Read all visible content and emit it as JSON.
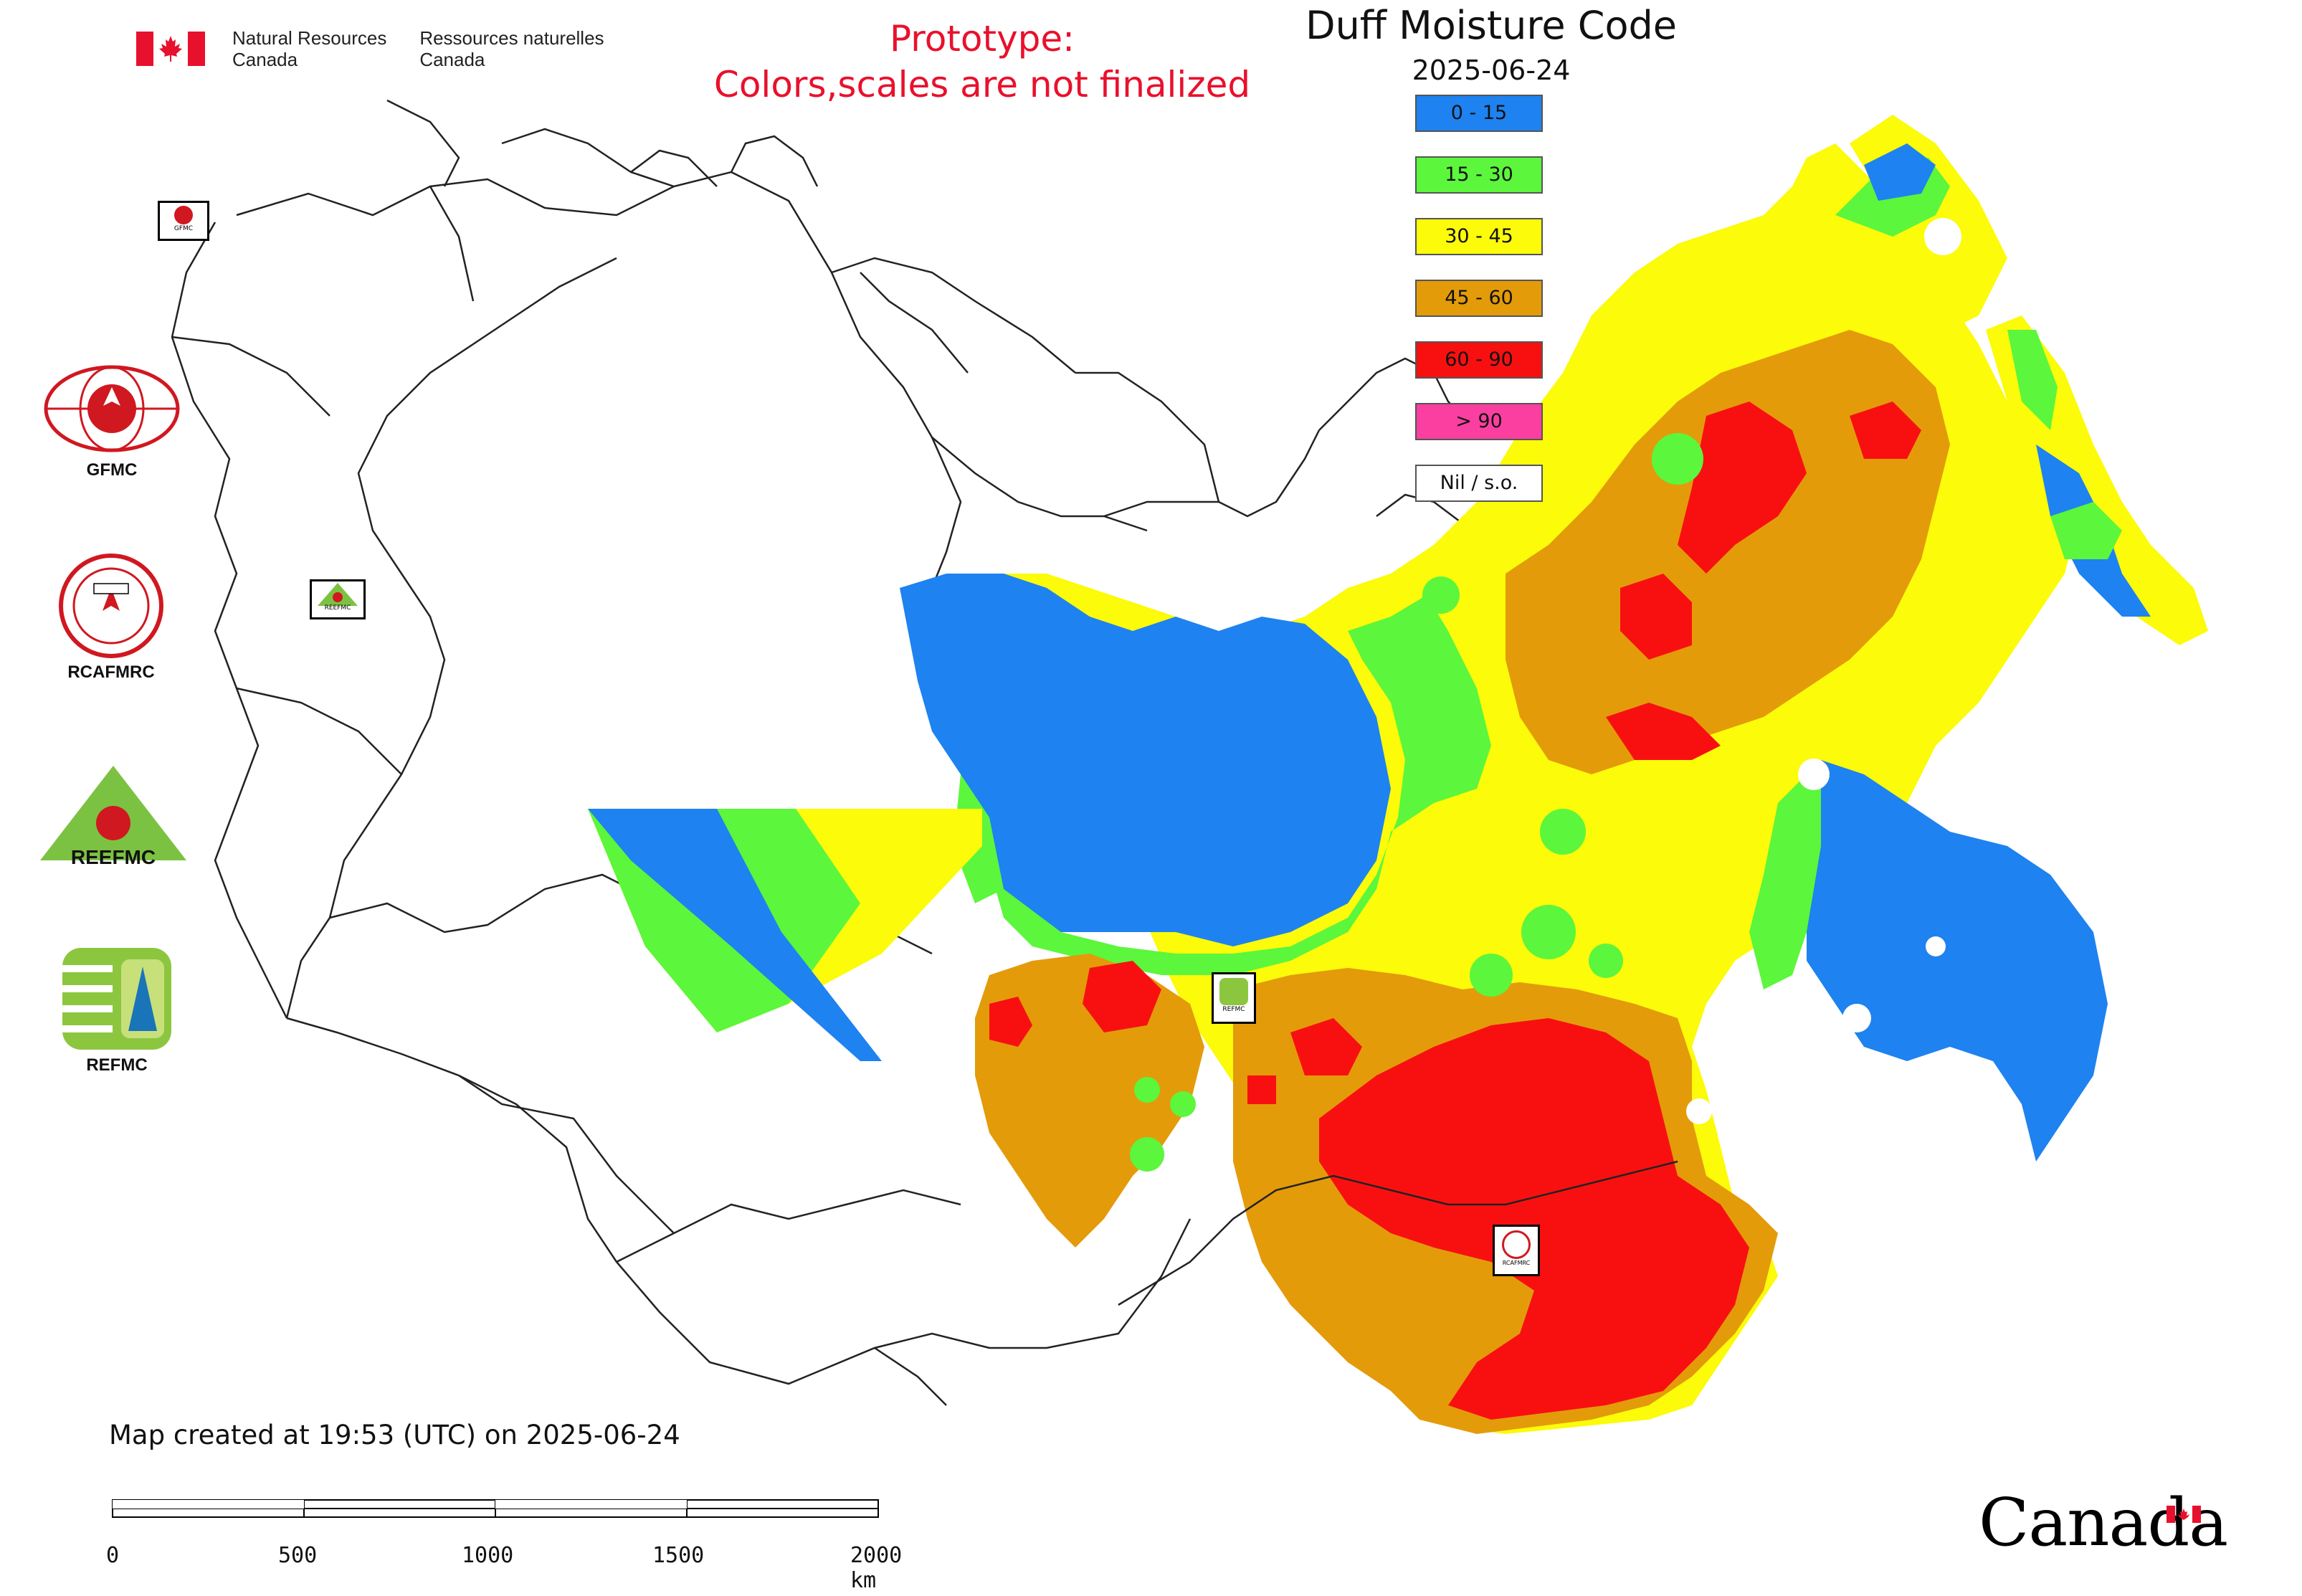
{
  "header": {
    "agency_en_1": "Natural Resources",
    "agency_en_2": "Canada",
    "agency_fr_1": "Ressources naturelles",
    "agency_fr_2": "Canada",
    "prototype_1": "Prototype:",
    "prototype_2": "Colors,scales are not finalized"
  },
  "map": {
    "title": "Duff Moisture Code",
    "date": "2025-06-24",
    "created_text": "Map created at 19:53 (UTC) on 2025-06-24"
  },
  "legend": [
    {
      "label": "0 - 15",
      "color": "#1e82f0"
    },
    {
      "label": "15 - 30",
      "color": "#5cf63c"
    },
    {
      "label": "30 - 45",
      "color": "#fbfb0a"
    },
    {
      "label": "45 - 60",
      "color": "#e39b0a"
    },
    {
      "label": "60 - 90",
      "color": "#f81010"
    },
    {
      "label": "> 90",
      "color": "#fa3fa0"
    },
    {
      "label": "Nil / s.o.",
      "color": "#ffffff"
    }
  ],
  "logos": {
    "gfmc": "GFMC",
    "rcafmrc": "RCAFMRC",
    "reefmc": "REEFMC",
    "refmc": "REFMC",
    "gfmc_small": "GFMC",
    "reefmc_small": "REEFMC",
    "refmc_small": "REFMC",
    "rcafmrc_small": "RCAFMRC"
  },
  "scale": {
    "ticks": [
      "0",
      "500",
      "1000",
      "1500",
      "2000 km"
    ]
  },
  "wordmark": "Canada",
  "colors": {
    "outline": "#222222",
    "flag_red": "#e8112d"
  }
}
